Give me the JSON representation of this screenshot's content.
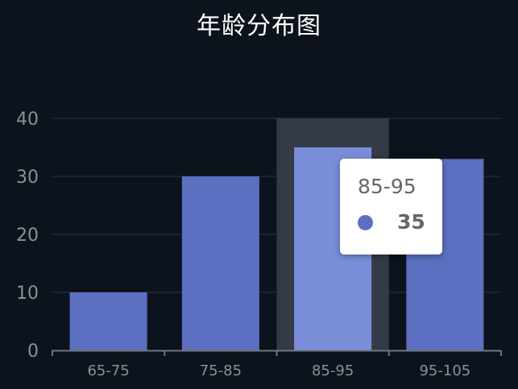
{
  "colors": {
    "background": "#0d131c",
    "bar": "#5c6fc0",
    "bar_highlight": "#7a8dd9",
    "axis_pointer": "#343b46",
    "grid": "#2a3440",
    "axis_label": "#8b9099",
    "axis_line": "#6e7681"
  },
  "chart_data": {
    "type": "bar",
    "title": "年龄分布图",
    "categories": [
      "65-75",
      "75-85",
      "85-95",
      "95-105"
    ],
    "values": [
      10,
      30,
      35,
      33
    ],
    "ylim": [
      0,
      40
    ],
    "yticks": [
      "0",
      "10",
      "20",
      "30",
      "40"
    ],
    "grid": true,
    "highlighted_index": 2
  },
  "tooltip": {
    "title": "85-95",
    "value": "35"
  }
}
